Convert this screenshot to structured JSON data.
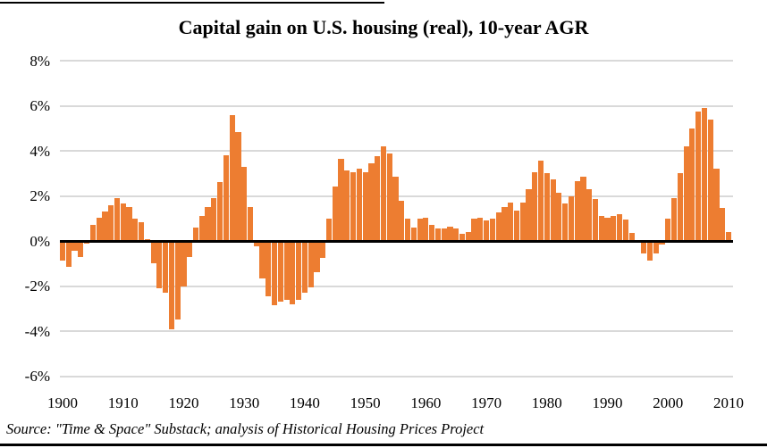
{
  "title": "Capital gain on U.S. housing (real), 10-year AGR",
  "source": "Source: \"Time & Space\" Substack; analysis of Historical Housing Prices Project",
  "colors": {
    "bar": "#ED7D31",
    "gridline": "#D9D9D9",
    "zero_line": "#000000",
    "text": "#000000"
  },
  "chart_data": {
    "type": "bar",
    "title": "Capital gain on U.S. housing (real), 10-year AGR",
    "xlabel": "",
    "ylabel": "",
    "ylim": [
      -6,
      8
    ],
    "grid": true,
    "y_ticks": [
      8,
      6,
      4,
      2,
      0,
      -2,
      -4,
      -6
    ],
    "y_tick_labels": [
      "8%",
      "6%",
      "4%",
      "2%",
      "0%",
      "-2%",
      "-4%",
      "-6%"
    ],
    "x_ticks": [
      1900,
      1910,
      1920,
      1930,
      1940,
      1950,
      1960,
      1970,
      1980,
      1990,
      2000,
      2010
    ],
    "x_tick_labels": [
      "1900",
      "1910",
      "1920",
      "1930",
      "1940",
      "1950",
      "1960",
      "1970",
      "1980",
      "1990",
      "2000",
      "2010"
    ],
    "years": [
      1900,
      1901,
      1902,
      1903,
      1904,
      1905,
      1906,
      1907,
      1908,
      1909,
      1910,
      1911,
      1912,
      1913,
      1914,
      1915,
      1916,
      1917,
      1918,
      1919,
      1920,
      1921,
      1922,
      1923,
      1924,
      1925,
      1926,
      1927,
      1928,
      1929,
      1930,
      1931,
      1932,
      1933,
      1934,
      1935,
      1936,
      1937,
      1938,
      1939,
      1940,
      1941,
      1942,
      1943,
      1944,
      1945,
      1946,
      1947,
      1948,
      1949,
      1950,
      1951,
      1952,
      1953,
      1954,
      1955,
      1956,
      1957,
      1958,
      1959,
      1960,
      1961,
      1962,
      1963,
      1964,
      1965,
      1966,
      1967,
      1968,
      1969,
      1970,
      1971,
      1972,
      1973,
      1974,
      1975,
      1976,
      1977,
      1978,
      1979,
      1980,
      1981,
      1982,
      1983,
      1984,
      1985,
      1986,
      1987,
      1988,
      1989,
      1990,
      1991,
      1992,
      1993,
      1994,
      1995,
      1996,
      1997,
      1998,
      1999,
      2000,
      2001,
      2002,
      2003,
      2004,
      2005,
      2006,
      2007,
      2008,
      2009,
      2010
    ],
    "values": [
      -0.85,
      -1.15,
      -0.45,
      -0.7,
      -0.1,
      0.7,
      1.05,
      1.3,
      1.6,
      1.9,
      1.65,
      1.5,
      1.0,
      0.85,
      0.1,
      -1.0,
      -2.1,
      -2.3,
      -3.9,
      -3.5,
      -2.0,
      -0.7,
      0.6,
      1.1,
      1.5,
      1.9,
      2.6,
      3.8,
      5.6,
      4.85,
      3.3,
      1.5,
      -0.25,
      -1.65,
      -2.45,
      -2.85,
      -2.7,
      -2.6,
      -2.8,
      -2.6,
      -2.3,
      -2.05,
      -1.4,
      -0.75,
      1.0,
      2.4,
      3.65,
      3.15,
      3.05,
      3.2,
      3.05,
      3.45,
      3.75,
      4.2,
      3.9,
      2.85,
      1.8,
      1.0,
      0.6,
      1.0,
      1.05,
      0.7,
      0.55,
      0.55,
      0.65,
      0.55,
      0.3,
      0.4,
      1.0,
      1.05,
      0.9,
      1.0,
      1.25,
      1.5,
      1.7,
      1.35,
      1.7,
      2.3,
      3.05,
      3.55,
      3.0,
      2.75,
      2.15,
      1.65,
      2.0,
      2.65,
      2.85,
      2.3,
      1.85,
      1.1,
      1.05,
      1.1,
      1.2,
      0.95,
      0.35,
      0.05,
      -0.55,
      -0.85,
      -0.55,
      -0.15,
      1.0,
      1.9,
      3.0,
      4.2,
      5.0,
      5.75,
      5.9,
      5.4,
      3.2,
      1.45,
      0.4
    ]
  }
}
